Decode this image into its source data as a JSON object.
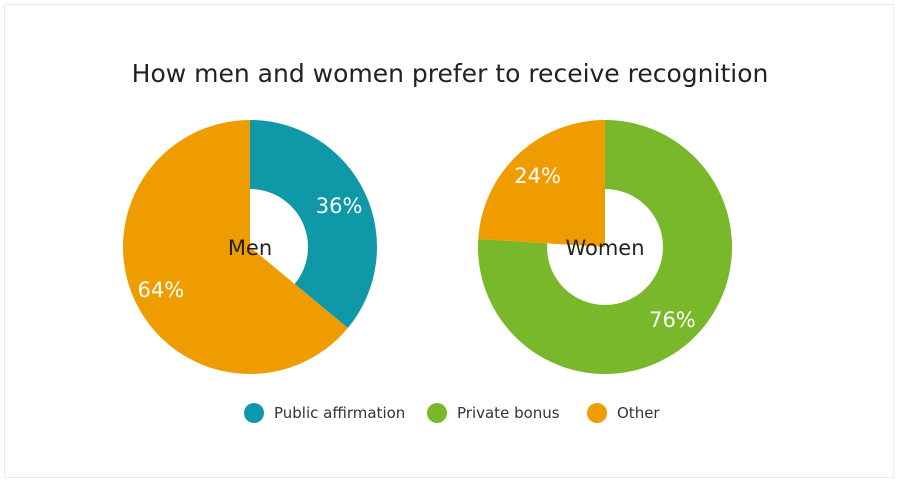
{
  "colors": {
    "public_affirmation": "#0f99a8",
    "private_bonus": "#78b82a",
    "other": "#ef9c00"
  },
  "chart_data": [
    {
      "type": "pie",
      "title": "How men and women prefer to receive recognition",
      "center_label": "Men",
      "slices": [
        {
          "name": "Public affirmation",
          "value": 36,
          "label": "36%"
        },
        {
          "name": "Other",
          "value": 64,
          "label": "64%"
        }
      ]
    },
    {
      "type": "pie",
      "title": "How men and women prefer to receive recognition",
      "center_label": "Women",
      "slices": [
        {
          "name": "Private bonus",
          "value": 76,
          "label": "76%"
        },
        {
          "name": "Other",
          "value": 24,
          "label": "24%"
        }
      ]
    }
  ],
  "legend": [
    {
      "label": "Public affirmation",
      "color_key": "public_affirmation"
    },
    {
      "label": "Private bonus",
      "color_key": "private_bonus"
    },
    {
      "label": "Other",
      "color_key": "other"
    }
  ]
}
